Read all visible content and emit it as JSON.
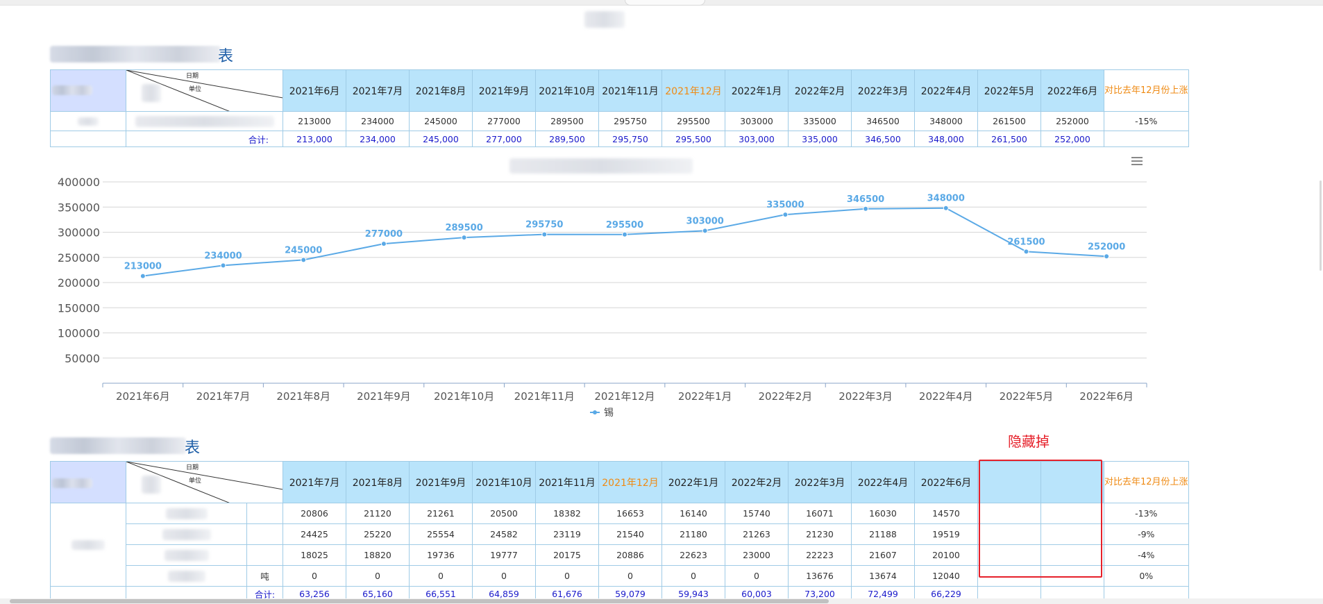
{
  "page": {
    "title_suffix": "表"
  },
  "annotation": {
    "label": "隐藏掉"
  },
  "table1": {
    "corner": {
      "top_label": "日期",
      "bottom_label": "单位"
    },
    "headers": [
      "2021年6月",
      "2021年7月",
      "2021年8月",
      "2021年9月",
      "2021年10月",
      "2021年11月",
      "2021年12月",
      "2022年1月",
      "2022年2月",
      "2022年3月",
      "2022年4月",
      "2022年5月",
      "2022年6月"
    ],
    "highlight_index": 6,
    "compare_header": "对比去年12月份上涨",
    "row_values": [
      "213000",
      "234000",
      "245000",
      "277000",
      "289500",
      "295750",
      "295500",
      "303000",
      "335000",
      "346500",
      "348000",
      "261500",
      "252000"
    ],
    "row_compare": "-15%",
    "total_label": "合计:",
    "totals": [
      "213,000",
      "234,000",
      "245,000",
      "277,000",
      "289,500",
      "295,750",
      "295,500",
      "303,000",
      "335,000",
      "346,500",
      "348,000",
      "261,500",
      "252,000"
    ]
  },
  "chart_data": {
    "type": "line",
    "categories": [
      "2021年6月",
      "2021年7月",
      "2021年8月",
      "2021年9月",
      "2021年10月",
      "2021年11月",
      "2021年12月",
      "2022年1月",
      "2022年2月",
      "2022年3月",
      "2022年4月",
      "2022年5月",
      "2022年6月"
    ],
    "series": [
      {
        "name": "锡",
        "values": [
          213000,
          234000,
          245000,
          277000,
          289500,
          295750,
          295500,
          303000,
          335000,
          346500,
          348000,
          261500,
          252000
        ]
      }
    ],
    "y_ticks": [
      50000,
      100000,
      150000,
      200000,
      250000,
      300000,
      350000,
      400000
    ],
    "ylim": [
      0,
      400000
    ],
    "data_labels": true,
    "grid": "horizontal",
    "legend_position": "bottom-center",
    "color": "#5aa9e6"
  },
  "table2": {
    "corner": {
      "top_label": "日期",
      "bottom_label": "单位"
    },
    "headers": [
      "2021年7月",
      "2021年8月",
      "2021年9月",
      "2021年10月",
      "2021年11月",
      "2021年12月",
      "2022年1月",
      "2022年2月",
      "2022年3月",
      "2022年4月",
      "2022年6月"
    ],
    "highlight_index": 5,
    "compare_header": "对比去年12月份上涨",
    "unit_chars": [
      "",
      "",
      "",
      "吨"
    ],
    "rows": [
      {
        "values": [
          "20806",
          "21120",
          "21261",
          "20500",
          "18382",
          "16653",
          "16140",
          "15740",
          "16071",
          "16030",
          "14570"
        ],
        "compare": "-13%"
      },
      {
        "values": [
          "24425",
          "25220",
          "25554",
          "24582",
          "23119",
          "21540",
          "21180",
          "21263",
          "21230",
          "21188",
          "19519"
        ],
        "compare": "-9%"
      },
      {
        "values": [
          "18025",
          "18820",
          "19736",
          "19777",
          "20175",
          "20886",
          "22623",
          "23000",
          "22223",
          "21607",
          "20100"
        ],
        "compare": "-4%"
      },
      {
        "values": [
          "0",
          "0",
          "0",
          "0",
          "0",
          "0",
          "0",
          "0",
          "13676",
          "13674",
          "12040"
        ],
        "compare": "0%"
      }
    ],
    "total_label": "合计:",
    "totals": [
      "63,256",
      "65,160",
      "66,551",
      "64,859",
      "61,676",
      "59,079",
      "59,943",
      "60,003",
      "73,200",
      "72,499",
      "66,229"
    ]
  }
}
